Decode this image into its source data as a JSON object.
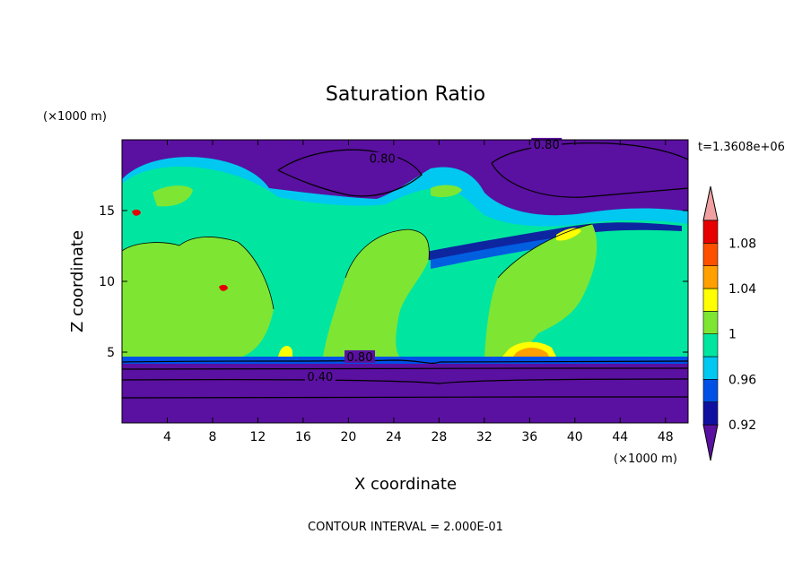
{
  "chart_data": {
    "type": "heatmap",
    "title": "Saturation Ratio",
    "xlabel": "X coordinate",
    "ylabel": "Z coordinate",
    "x_unit": "(×1000 m)",
    "y_unit": "(×1000 m)",
    "time_label": "t=1.3608e+06",
    "footer": "CONTOUR INTERVAL = 2.000E-01",
    "xlim": [
      0,
      50
    ],
    "ylim": [
      0,
      20
    ],
    "x_ticks": [
      "4",
      "8",
      "12",
      "16",
      "20",
      "24",
      "28",
      "32",
      "36",
      "40",
      "44",
      "48"
    ],
    "y_ticks": [
      "5",
      "10",
      "15"
    ],
    "contour_labels": [
      {
        "text": "0.80",
        "x": 23,
        "z": 18.5
      },
      {
        "text": "0.80",
        "x": 37.5,
        "z": 19.5
      },
      {
        "text": "0.80",
        "x": 21,
        "z": 4.5
      },
      {
        "text": "0.40",
        "x": 17.5,
        "z": 3.1
      }
    ],
    "colorbar": {
      "levels": [
        0.92,
        0.94,
        0.96,
        0.98,
        1.0,
        1.02,
        1.04,
        1.06,
        1.08,
        1.1
      ],
      "tick_labels": [
        "0.92",
        "0.96",
        "1",
        "1.04",
        "1.08"
      ],
      "colors": [
        "#5a10a0",
        "#1010a0",
        "#0050e6",
        "#00c8f0",
        "#00e6a0",
        "#7ee632",
        "#ffff00",
        "#ffa000",
        "#ff5000",
        "#e60000",
        "#f0a0a0"
      ]
    }
  }
}
